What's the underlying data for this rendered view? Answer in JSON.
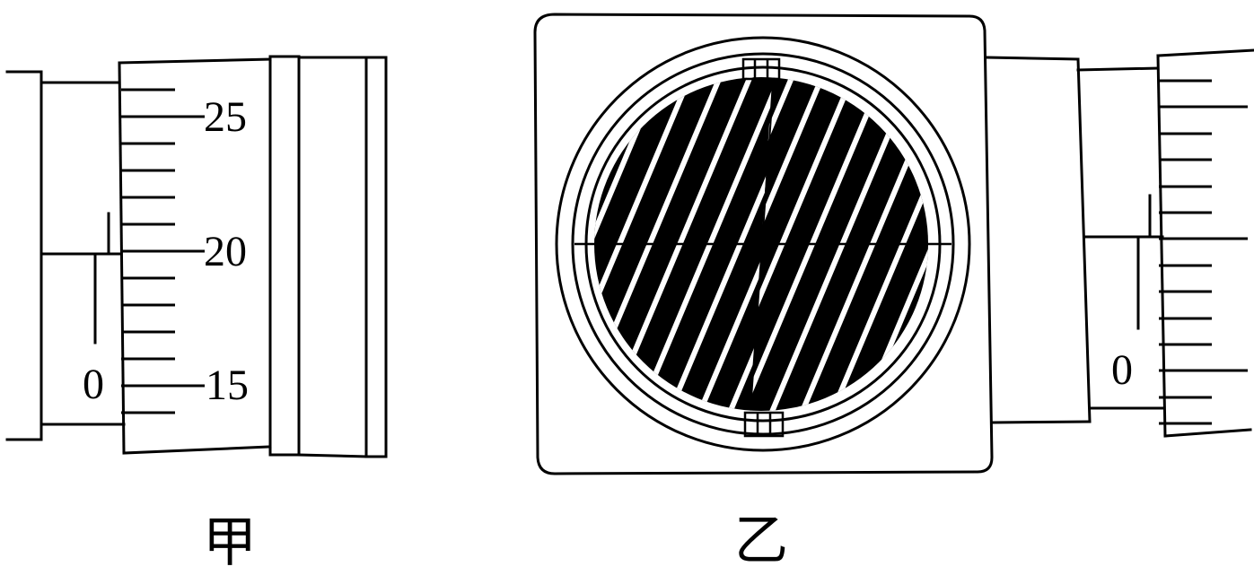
{
  "figures": [
    {
      "caption": "甲",
      "sleeve_label": "0",
      "thimble_labels": [
        "25",
        "20",
        "15"
      ]
    },
    {
      "caption": "乙",
      "sleeve_label": "0"
    }
  ]
}
